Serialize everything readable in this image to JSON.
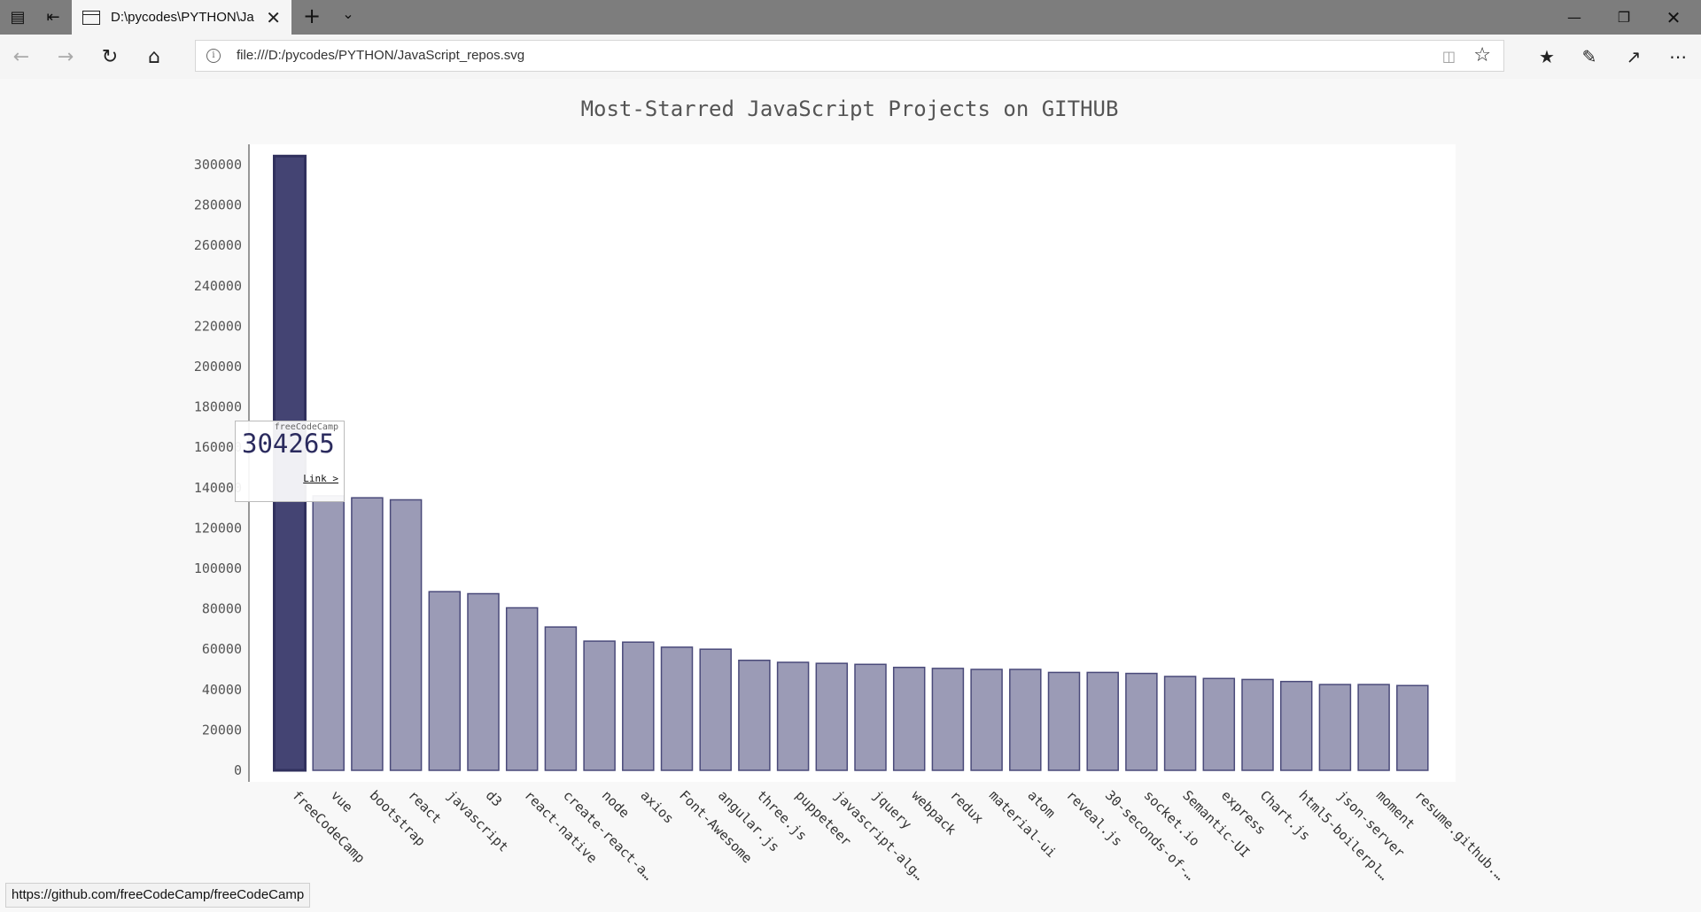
{
  "browser": {
    "tab_title": "D:\\pycodes\\PYTHON\\Ja",
    "address": "file:///D:/pycodes/PYTHON/JavaScript_repos.svg",
    "status_url": "https://github.com/freeCodeCamp/freeCodeCamp",
    "icons": {
      "tab_actions": "tab-actions-icon",
      "set_aside": "set-aside-tabs-icon",
      "new_tab": "plus-icon",
      "tab_preview": "chevron-down-icon",
      "minimize": "minimize-icon",
      "maximize": "restore-icon",
      "close": "close-icon",
      "back": "back-arrow-icon",
      "forward": "forward-arrow-icon",
      "refresh": "refresh-icon",
      "home": "home-icon",
      "favorites": "favorites-icon",
      "notes": "pen-icon",
      "share": "share-icon",
      "more": "more-icon"
    }
  },
  "tooltip": {
    "label": "freeCodeCamp",
    "value": "304265",
    "link_text": "Link >"
  },
  "chart_data": {
    "type": "bar",
    "title": "Most-Starred JavaScript Projects on GITHUB",
    "xlabel": "",
    "ylabel": "",
    "ylim": [
      0,
      310000
    ],
    "yticks": [
      "0",
      "20000",
      "40000",
      "60000",
      "80000",
      "100000",
      "120000",
      "140000",
      "160000",
      "180000",
      "200000",
      "220000",
      "240000",
      "260000",
      "280000",
      "300000"
    ],
    "categories": [
      "freeCodeCamp",
      "vue",
      "bootstrap",
      "react",
      "javascript",
      "d3",
      "react-native",
      "create-react-a…",
      "node",
      "axios",
      "Font-Awesome",
      "angular.js",
      "three.js",
      "puppeteer",
      "javascript-alg…",
      "jquery",
      "webpack",
      "redux",
      "material-ui",
      "atom",
      "reveal.js",
      "30-seconds-of-…",
      "socket.io",
      "Semantic-UI",
      "express",
      "Chart.js",
      "html5-boilerpl…",
      "json-server",
      "moment",
      "resume.github.…"
    ],
    "values": [
      304265,
      136000,
      135000,
      134000,
      88500,
      87500,
      80500,
      71000,
      64000,
      63500,
      61000,
      60000,
      54500,
      53500,
      53000,
      52500,
      51000,
      50500,
      50000,
      50000,
      48500,
      48500,
      48000,
      46500,
      45500,
      45000,
      44000,
      42500,
      42500,
      42000
    ],
    "highlighted": "freeCodeCamp",
    "colors": {
      "bar": "#9b9bb6",
      "bar_active": "#444473",
      "bar_stroke": "#4a4a7a"
    },
    "grid": false,
    "legend": "none"
  }
}
